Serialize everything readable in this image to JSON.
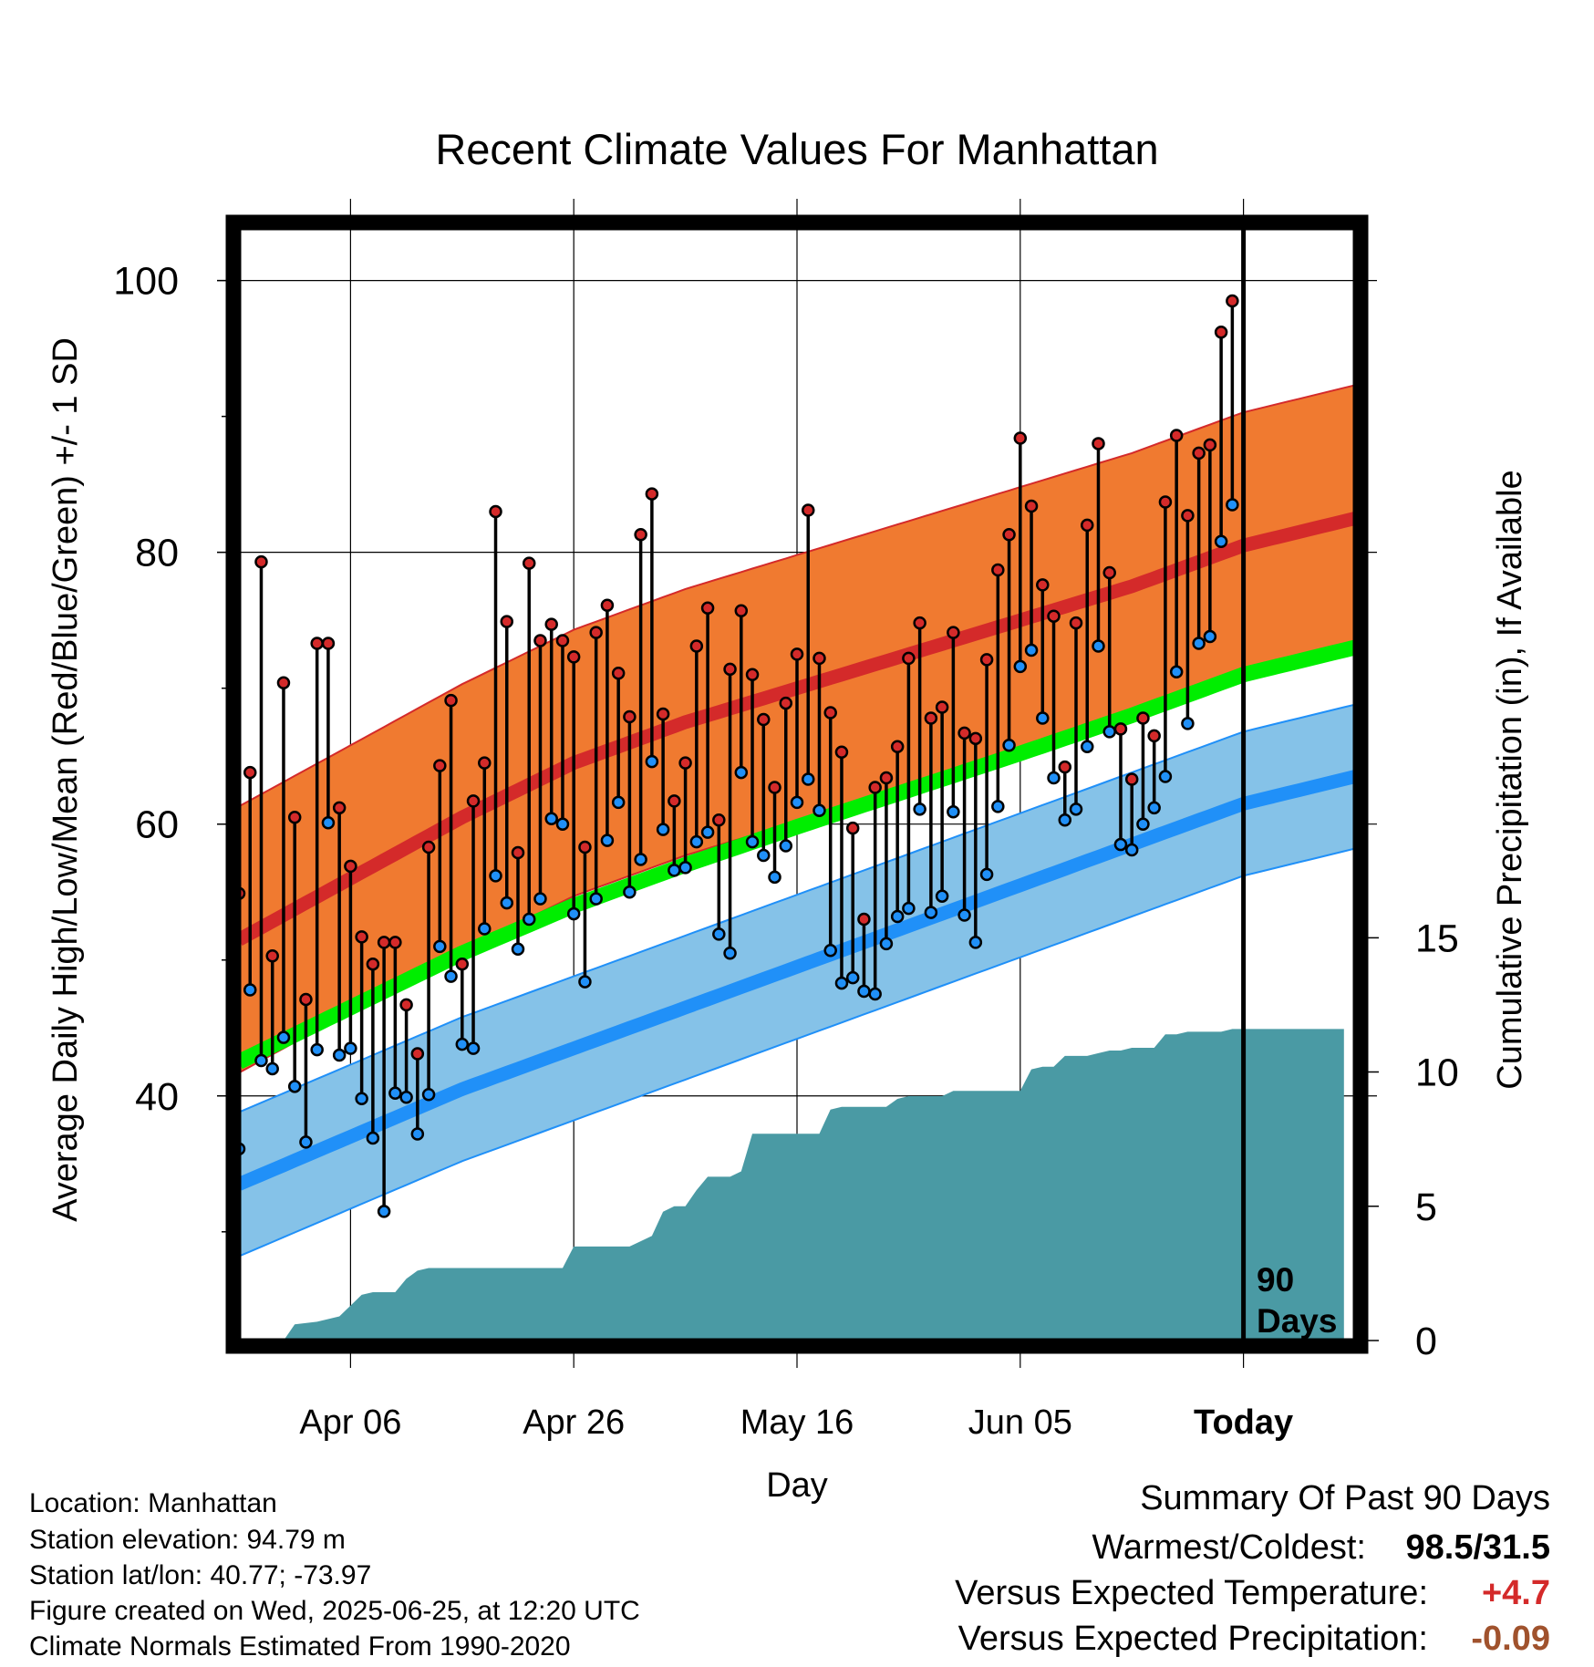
{
  "chart_data": {
    "type": "line",
    "title": "Recent Climate Values For Manhattan",
    "xlabel": "Day",
    "ylabel": "Average Daily High/Low/Mean (Red/Blue/Green) +/- 1 SD",
    "y2label": "Cumulative Precipitation (in), If Available",
    "ylim": [
      22,
      104
    ],
    "y2lim": [
      0,
      41.5
    ],
    "xlim": [
      -10,
      90
    ],
    "x_ticks": [
      {
        "x": 0,
        "label": "Apr 06"
      },
      {
        "x": 20,
        "label": "Apr 26"
      },
      {
        "x": 40,
        "label": "May 16"
      },
      {
        "x": 60,
        "label": "Jun 05"
      },
      {
        "x": 80,
        "label": "Today"
      }
    ],
    "y_ticks_major": [
      40,
      60,
      80,
      100
    ],
    "y_ticks_minor": [
      30,
      50,
      70,
      90
    ],
    "y2_ticks": [
      0,
      5,
      10,
      15
    ],
    "today_marker": {
      "x": 80,
      "label_line1": "90",
      "label_line2": "Days"
    },
    "grid": true,
    "colors": {
      "high_band": "#f07a30",
      "high_line": "#d42a2a",
      "low_band": "#85c2e8",
      "low_line": "#2090f8",
      "mean_line": "#00ee00",
      "precip": "#4a9aa4",
      "high_dot": "#d42a2a",
      "low_dot": "#2090f8",
      "warm_value": "#d42a2a",
      "precip_value": "#a0522d"
    },
    "normal_high": {
      "x": [
        -10,
        0,
        10,
        20,
        30,
        40,
        50,
        60,
        70,
        80,
        90
      ],
      "mean": [
        51.5,
        56.0,
        60.5,
        64.5,
        67.5,
        70.0,
        72.5,
        75.0,
        77.5,
        80.5,
        82.5
      ],
      "sd": 9.8
    },
    "normal_low": {
      "x": [
        -10,
        0,
        10,
        20,
        30,
        40,
        50,
        60,
        70,
        80,
        90
      ],
      "mean": [
        33.5,
        37.0,
        40.5,
        43.5,
        46.5,
        49.5,
        52.5,
        55.5,
        58.5,
        61.5,
        63.5
      ],
      "sd": 5.3
    },
    "normal_mean": {
      "x": [
        -10,
        0,
        10,
        20,
        30,
        40,
        50,
        60,
        70,
        80,
        90
      ],
      "values": [
        42.5,
        46.5,
        50.5,
        54.0,
        57.0,
        59.8,
        62.5,
        65.2,
        68.0,
        71.0,
        73.0
      ]
    },
    "daily_high": {
      "x": [
        -10,
        -9,
        -8,
        -7,
        -6,
        -5,
        -4,
        -3,
        -2,
        -1,
        0,
        1,
        2,
        3,
        4,
        5,
        6,
        7,
        8,
        9,
        10,
        11,
        12,
        13,
        14,
        15,
        16,
        17,
        18,
        19,
        20,
        21,
        22,
        23,
        24,
        25,
        26,
        27,
        28,
        29,
        30,
        31,
        32,
        33,
        34,
        35,
        36,
        37,
        38,
        39,
        40,
        41,
        42,
        43,
        44,
        45,
        46,
        47,
        48,
        49,
        50,
        51,
        52,
        53,
        54,
        55,
        56,
        57,
        58,
        59,
        60,
        61,
        62,
        63,
        64,
        65,
        66,
        67,
        68,
        69,
        70,
        71,
        72,
        73,
        74,
        75,
        76,
        77,
        78,
        79
      ],
      "values": [
        54.9,
        63.8,
        79.3,
        50.3,
        70.4,
        60.5,
        47.1,
        73.3,
        73.3,
        61.2,
        56.9,
        51.7,
        49.7,
        51.3,
        51.3,
        46.7,
        43.1,
        58.3,
        64.3,
        69.1,
        49.7,
        61.7,
        64.5,
        83.0,
        74.9,
        57.9,
        79.2,
        73.5,
        74.7,
        73.5,
        72.3,
        58.3,
        74.1,
        76.1,
        71.1,
        67.9,
        81.3,
        84.3,
        68.1,
        61.7,
        64.5,
        73.1,
        75.9,
        60.3,
        71.4,
        75.7,
        71.0,
        67.7,
        62.7,
        68.9,
        72.5,
        83.1,
        72.2,
        68.2,
        65.3,
        59.7,
        53.0,
        62.7,
        63.4,
        65.7,
        72.2,
        74.8,
        67.8,
        68.6,
        74.1,
        66.7,
        66.3,
        72.1,
        78.7,
        81.3,
        88.4,
        83.4,
        77.6,
        75.3,
        64.2,
        74.8,
        82.0,
        88.0,
        78.5,
        67.0,
        63.3,
        67.8,
        66.5,
        83.7,
        88.6,
        82.7,
        87.3,
        87.9,
        96.2,
        98.5
      ]
    },
    "daily_low": {
      "x": [
        -10,
        -9,
        -8,
        -7,
        -6,
        -5,
        -4,
        -3,
        -2,
        -1,
        0,
        1,
        2,
        3,
        4,
        5,
        6,
        7,
        8,
        9,
        10,
        11,
        12,
        13,
        14,
        15,
        16,
        17,
        18,
        19,
        20,
        21,
        22,
        23,
        24,
        25,
        26,
        27,
        28,
        29,
        30,
        31,
        32,
        33,
        34,
        35,
        36,
        37,
        38,
        39,
        40,
        41,
        42,
        43,
        44,
        45,
        46,
        47,
        48,
        49,
        50,
        51,
        52,
        53,
        54,
        55,
        56,
        57,
        58,
        59,
        60,
        61,
        62,
        63,
        64,
        65,
        66,
        67,
        68,
        69,
        70,
        71,
        72,
        73,
        74,
        75,
        76,
        77,
        78,
        79
      ],
      "values": [
        36.1,
        47.8,
        42.6,
        42.0,
        44.3,
        40.7,
        36.6,
        43.4,
        60.1,
        43.0,
        43.5,
        39.8,
        36.9,
        31.5,
        40.2,
        39.9,
        37.2,
        40.1,
        51.0,
        48.8,
        43.8,
        43.5,
        52.3,
        56.2,
        54.2,
        50.8,
        53.0,
        54.5,
        60.4,
        60.0,
        53.4,
        48.4,
        54.5,
        58.8,
        61.6,
        55.0,
        57.4,
        64.6,
        59.6,
        56.6,
        56.8,
        58.7,
        59.4,
        51.9,
        50.5,
        63.8,
        58.7,
        57.7,
        56.1,
        58.4,
        61.6,
        63.3,
        61.0,
        50.7,
        48.3,
        48.7,
        47.7,
        47.5,
        51.2,
        53.2,
        53.8,
        61.1,
        53.5,
        54.7,
        60.9,
        53.3,
        51.3,
        56.3,
        61.3,
        65.8,
        71.6,
        72.8,
        67.8,
        63.4,
        60.3,
        61.1,
        65.7,
        73.1,
        66.8,
        58.5,
        58.1,
        60.0,
        61.2,
        63.5,
        71.2,
        67.4,
        73.3,
        73.8,
        80.8,
        83.5
      ]
    },
    "cumulative_precip": {
      "x": [
        -10,
        -6,
        -5,
        -3,
        -1,
        0,
        1,
        2,
        3,
        4,
        5,
        6,
        7,
        8,
        9,
        10,
        12,
        15,
        18,
        19,
        20,
        21,
        25,
        26,
        27,
        28,
        29,
        30,
        31,
        32,
        33,
        34,
        35,
        36,
        37,
        38,
        39,
        40,
        41,
        42,
        43,
        44,
        45,
        46,
        47,
        48,
        49,
        50,
        51,
        52,
        53,
        54,
        55,
        56,
        57,
        58,
        59,
        60,
        61,
        62,
        63,
        64,
        65,
        66,
        67,
        68,
        69,
        70,
        71,
        72,
        73,
        74,
        75,
        76,
        77,
        78,
        79,
        80,
        89
      ],
      "values": [
        0.0,
        0.0,
        0.6,
        0.7,
        0.9,
        1.3,
        1.7,
        1.8,
        1.8,
        1.8,
        2.3,
        2.6,
        2.7,
        2.7,
        2.7,
        2.7,
        2.7,
        2.7,
        2.7,
        2.7,
        3.5,
        3.5,
        3.5,
        3.7,
        3.9,
        4.8,
        5.0,
        5.0,
        5.6,
        6.1,
        6.1,
        6.1,
        6.3,
        7.7,
        7.7,
        7.7,
        7.7,
        7.7,
        7.7,
        7.7,
        8.6,
        8.7,
        8.7,
        8.7,
        8.7,
        8.7,
        9.0,
        9.1,
        9.1,
        9.1,
        9.1,
        9.3,
        9.3,
        9.3,
        9.3,
        9.3,
        9.3,
        9.3,
        10.1,
        10.2,
        10.2,
        10.6,
        10.6,
        10.6,
        10.7,
        10.8,
        10.8,
        10.9,
        10.9,
        10.9,
        11.4,
        11.4,
        11.5,
        11.5,
        11.5,
        11.5,
        11.6,
        11.6,
        11.6
      ]
    }
  },
  "info": {
    "location": "Location: Manhattan",
    "elevation": "Station elevation: 94.79 m",
    "latlon": "Station lat/lon: 40.77; -73.97",
    "created": "Figure created on Wed, 2025-06-25, at 12:20 UTC",
    "normals": "Climate Normals Estimated From 1990-2020"
  },
  "summary": {
    "title": "Summary Of Past 90 Days",
    "warmest_coldest_label": "Warmest/Coldest:",
    "warmest_coldest_value": "98.5/31.5",
    "temp_label": "Versus Expected Temperature:",
    "temp_value": "+4.7",
    "precip_label": "Versus Expected Precipitation:",
    "precip_value": "-0.09"
  }
}
